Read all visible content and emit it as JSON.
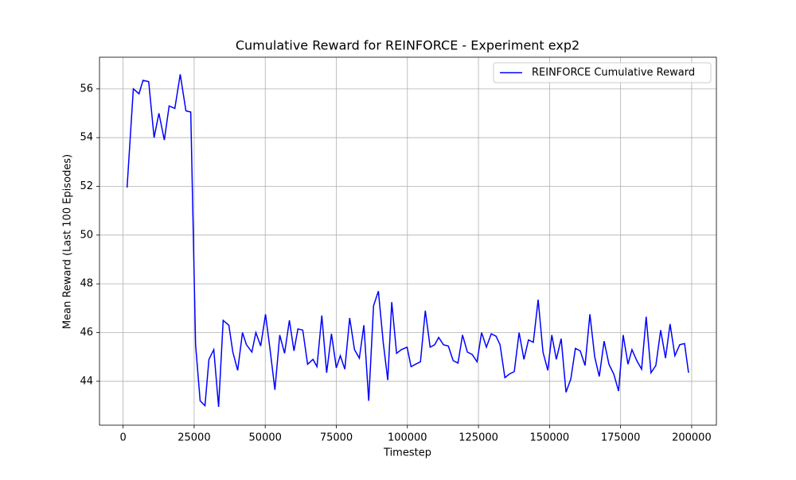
{
  "chart_data": {
    "type": "line",
    "title": "Cumulative Reward for REINFORCE - Experiment exp2",
    "x_label": "Timestep",
    "y_label": "Mean Reward (Last 100 Episodes)",
    "x": [
      1400,
      3600,
      5600,
      7000,
      9000,
      10900,
      12600,
      14500,
      16200,
      18200,
      20100,
      22100,
      23800,
      25500,
      27100,
      28800,
      30200,
      31900,
      33600,
      35200,
      37200,
      38600,
      40300,
      42000,
      43400,
      45300,
      46700,
      48400,
      50100,
      51700,
      53400,
      55100,
      56800,
      58500,
      60100,
      61500,
      63200,
      64900,
      66800,
      68200,
      69900,
      71600,
      73300,
      75000,
      76400,
      78000,
      79700,
      81400,
      83100,
      84700,
      86400,
      88100,
      89800,
      91500,
      93100,
      94500,
      96200,
      97900,
      99900,
      101300,
      102900,
      104600,
      106300,
      108000,
      109600,
      111000,
      112700,
      114400,
      116100,
      117800,
      119400,
      121100,
      122800,
      124500,
      126100,
      127800,
      129500,
      131200,
      132600,
      134300,
      135900,
      137600,
      139300,
      141000,
      142600,
      144300,
      146000,
      147700,
      149400,
      150800,
      152400,
      154100,
      155800,
      157500,
      159100,
      160800,
      162500,
      164200,
      165900,
      167500,
      169200,
      170900,
      172600,
      174300,
      175900,
      177600,
      179000,
      180700,
      182400,
      184000,
      185700,
      187400,
      189100,
      190800,
      192400,
      194100,
      195800,
      197500,
      198900
    ],
    "series": [
      {
        "name": "REINFORCE Cumulative Reward",
        "color": "#0000ff",
        "values": [
          51.95,
          56.0,
          55.8,
          56.35,
          56.3,
          54.0,
          55.0,
          53.9,
          55.3,
          55.2,
          56.6,
          55.1,
          55.05,
          45.5,
          43.2,
          43.0,
          44.9,
          45.3,
          42.95,
          46.5,
          46.3,
          45.2,
          44.45,
          46.0,
          45.5,
          45.2,
          46.0,
          45.45,
          46.75,
          45.3,
          43.65,
          45.9,
          45.15,
          46.5,
          45.25,
          46.15,
          46.1,
          44.7,
          44.9,
          44.6,
          46.7,
          44.35,
          45.95,
          44.55,
          45.05,
          44.5,
          46.6,
          45.3,
          44.95,
          46.3,
          43.2,
          47.1,
          47.7,
          45.6,
          44.05,
          47.25,
          45.15,
          45.3,
          45.4,
          44.6,
          44.7,
          44.8,
          46.9,
          45.4,
          45.5,
          45.8,
          45.5,
          45.45,
          44.85,
          44.75,
          45.9,
          45.2,
          45.1,
          44.8,
          46.0,
          45.4,
          45.95,
          45.85,
          45.5,
          44.15,
          44.3,
          44.4,
          46.0,
          44.9,
          45.7,
          45.6,
          47.35,
          45.2,
          44.45,
          45.9,
          44.9,
          45.75,
          43.55,
          44.1,
          45.35,
          45.25,
          44.65,
          46.75,
          45.0,
          44.2,
          45.65,
          44.7,
          44.3,
          43.6,
          45.9,
          44.7,
          45.3,
          44.85,
          44.5,
          46.65,
          44.35,
          44.65,
          46.1,
          44.95,
          46.35,
          45.05,
          45.5,
          45.55,
          44.35
        ]
      }
    ],
    "xlim": [
      -8300,
      208700
    ],
    "xticks": [
      0,
      25000,
      50000,
      75000,
      100000,
      125000,
      150000,
      175000,
      200000
    ],
    "ylim": [
      42.2,
      57.3
    ],
    "yticks": [
      44,
      46,
      48,
      50,
      52,
      54,
      56
    ],
    "grid": true,
    "legend": "upper right"
  }
}
